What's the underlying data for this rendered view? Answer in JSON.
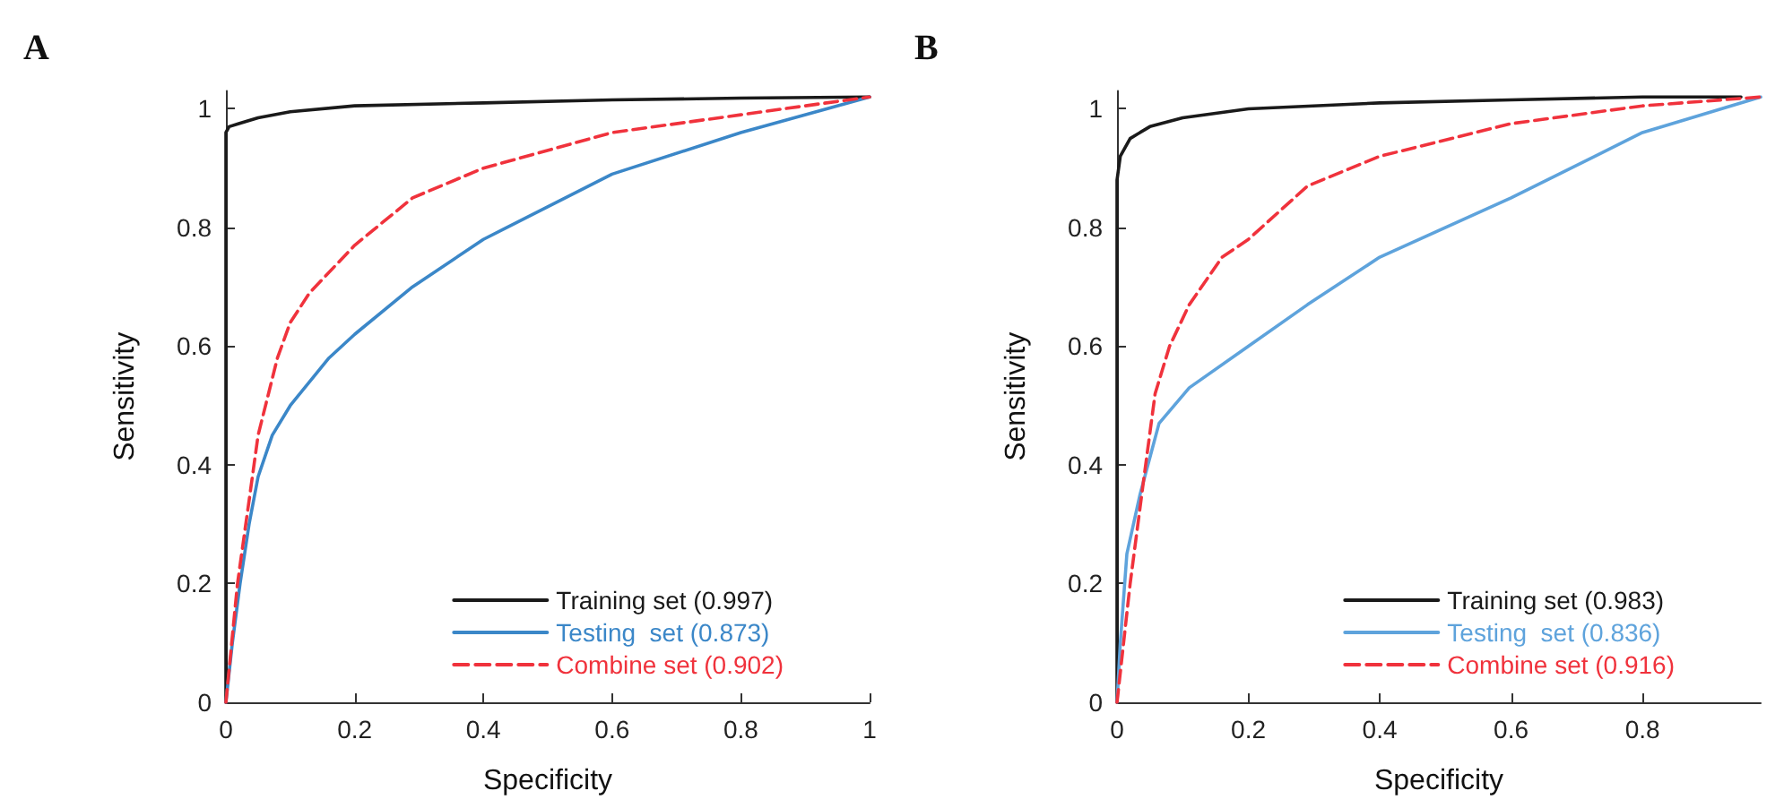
{
  "chart_data": [
    {
      "type": "line",
      "title": "A",
      "xlabel": "Specificity",
      "ylabel": "Sensitivity",
      "xlim": [
        0,
        1
      ],
      "ylim": [
        0,
        1.03
      ],
      "xticks": [
        0,
        0.2,
        0.4,
        0.6,
        0.8,
        1
      ],
      "yticks": [
        0,
        0.2,
        0.4,
        0.6,
        0.8,
        1
      ],
      "legend": "bottom right",
      "marker": "none",
      "series": [
        {
          "name": "Training set (0.997)",
          "color": "#1a1a1a",
          "line_style": "solid",
          "x": [
            0,
            0,
            0.005,
            0.02,
            0.05,
            0.1,
            0.2,
            0.4,
            0.6,
            0.8,
            1
          ],
          "values": [
            0,
            0.96,
            0.97,
            0.975,
            0.985,
            0.995,
            1.005,
            1.01,
            1.015,
            1.018,
            1.02
          ]
        },
        {
          "name": "Testing  set (0.873)",
          "color": "#3b87c8",
          "line_style": "solid",
          "x": [
            0,
            0.01,
            0.022,
            0.036,
            0.05,
            0.072,
            0.1,
            0.16,
            0.2,
            0.29,
            0.4,
            0.6,
            0.8,
            1
          ],
          "values": [
            0,
            0.1,
            0.2,
            0.3,
            0.38,
            0.45,
            0.5,
            0.58,
            0.62,
            0.7,
            0.78,
            0.89,
            0.96,
            1.02
          ]
        },
        {
          "name": "Combine set (0.902)",
          "color": "#f0323c",
          "line_style": "dashed",
          "x": [
            0,
            0.018,
            0.036,
            0.05,
            0.08,
            0.1,
            0.13,
            0.2,
            0.29,
            0.4,
            0.6,
            0.8,
            1
          ],
          "values": [
            0,
            0.2,
            0.34,
            0.45,
            0.58,
            0.64,
            0.69,
            0.77,
            0.85,
            0.9,
            0.96,
            0.99,
            1.02
          ]
        }
      ]
    },
    {
      "type": "line",
      "title": "B",
      "xlabel": "Specificity",
      "ylabel": "Sensitivity",
      "xlim": [
        0,
        0.98
      ],
      "ylim": [
        0,
        1.03
      ],
      "xticks": [
        0,
        0.2,
        0.4,
        0.6,
        0.8
      ],
      "yticks": [
        0,
        0.2,
        0.4,
        0.6,
        0.8,
        1
      ],
      "legend": "bottom right",
      "marker": "none",
      "series": [
        {
          "name": "Training set (0.983)",
          "color": "#1a1a1a",
          "line_style": "solid",
          "x": [
            0,
            0,
            0.005,
            0.02,
            0.05,
            0.1,
            0.2,
            0.4,
            0.6,
            0.8,
            0.95
          ],
          "values": [
            0,
            0.88,
            0.92,
            0.95,
            0.97,
            0.985,
            1.0,
            1.01,
            1.015,
            1.02,
            1.02
          ]
        },
        {
          "name": "Testing  set (0.836)",
          "color": "#5ea3dc",
          "line_style": "solid",
          "x": [
            0,
            0.005,
            0.015,
            0.035,
            0.064,
            0.11,
            0.2,
            0.29,
            0.4,
            0.6,
            0.8,
            0.98
          ],
          "values": [
            0,
            0.1,
            0.25,
            0.35,
            0.47,
            0.53,
            0.6,
            0.67,
            0.75,
            0.85,
            0.96,
            1.02
          ]
        },
        {
          "name": "Combine set (0.916)",
          "color": "#f0323c",
          "line_style": "dashed",
          "x": [
            0,
            0.02,
            0.04,
            0.058,
            0.08,
            0.11,
            0.16,
            0.2,
            0.29,
            0.4,
            0.6,
            0.8,
            0.98
          ],
          "values": [
            0,
            0.2,
            0.37,
            0.52,
            0.6,
            0.67,
            0.75,
            0.78,
            0.87,
            0.92,
            0.975,
            1.005,
            1.02
          ]
        }
      ]
    }
  ]
}
